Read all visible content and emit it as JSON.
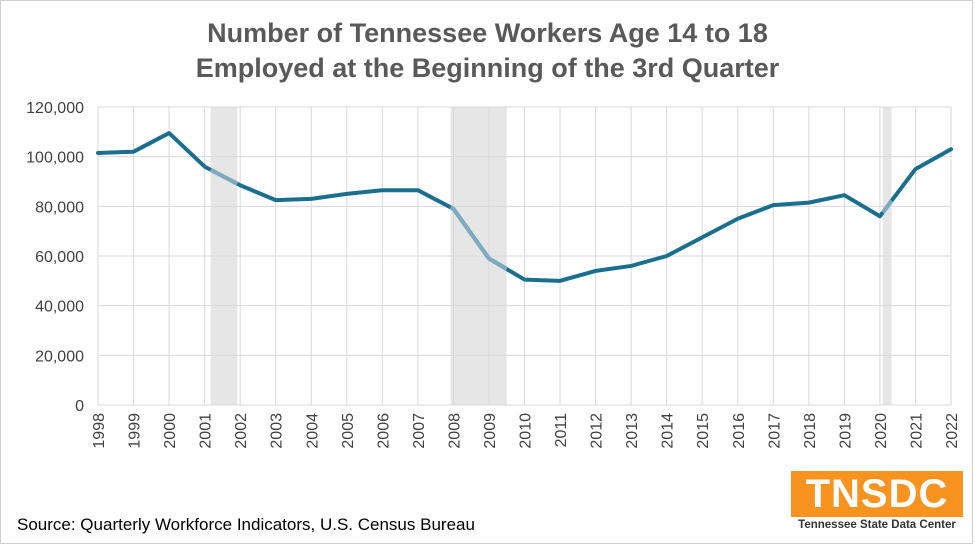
{
  "chart_data": {
    "type": "line",
    "title": "Number of Tennessee Workers Age 14 to 18",
    "subtitle": "Employed at the Beginning of the 3rd Quarter",
    "x": [
      "1998",
      "1999",
      "2000",
      "2001",
      "2002",
      "2003",
      "2004",
      "2005",
      "2006",
      "2007",
      "2008",
      "2009",
      "2010",
      "2011",
      "2012",
      "2013",
      "2014",
      "2015",
      "2016",
      "2017",
      "2018",
      "2019",
      "2020",
      "2021",
      "2022"
    ],
    "series": [
      {
        "values": [
          101500,
          102000,
          109500,
          96000,
          88500,
          82500,
          83000,
          85000,
          86500,
          86500,
          79000,
          59000,
          50500,
          50000,
          54000,
          56000,
          60000,
          67500,
          75000,
          80500,
          81500,
          84500,
          76000,
          95000,
          103000
        ]
      }
    ],
    "yticks": [
      "0",
      "20,000",
      "40,000",
      "60,000",
      "80,000",
      "100,000",
      "120,000"
    ],
    "ylim": [
      0,
      120000
    ],
    "recessions": [
      [
        2001.17,
        2001.92
      ],
      [
        2007.92,
        2009.5
      ],
      [
        2020.08,
        2020.33
      ]
    ],
    "grid": true,
    "colors": {
      "line": "#1a6e8e",
      "recession_line": "#7fabc1",
      "recession_band": "#e6e6e6",
      "grid": "#d9d9d9"
    }
  },
  "source": "Source:  Quarterly Workforce Indicators, U.S. Census Bureau",
  "logo": {
    "mark": "TNSDC",
    "subtitle": "Tennessee State Data Center"
  }
}
